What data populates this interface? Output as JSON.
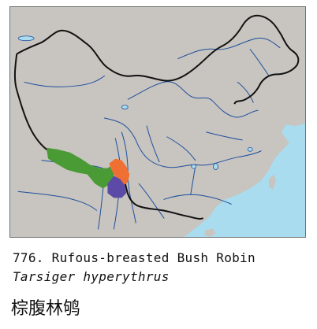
{
  "caption": {
    "number": "776.",
    "common_name": "Rufous-breasted Bush Robin",
    "scientific_name": "Tarsiger hyperythrus",
    "chinese_name": "棕腹林鸲"
  },
  "colors": {
    "sea": "#a9dcef",
    "land": "#c8c4bf",
    "border": "#111111",
    "river": "#1f4f9f",
    "range_resident": "#4a9a36",
    "range_breeding": "#f07033",
    "range_nonbreeding": "#5b4ba6"
  },
  "map_features": [
    "land",
    "sea",
    "national-border",
    "rivers",
    "range-resident",
    "range-breeding",
    "range-nonbreeding"
  ]
}
